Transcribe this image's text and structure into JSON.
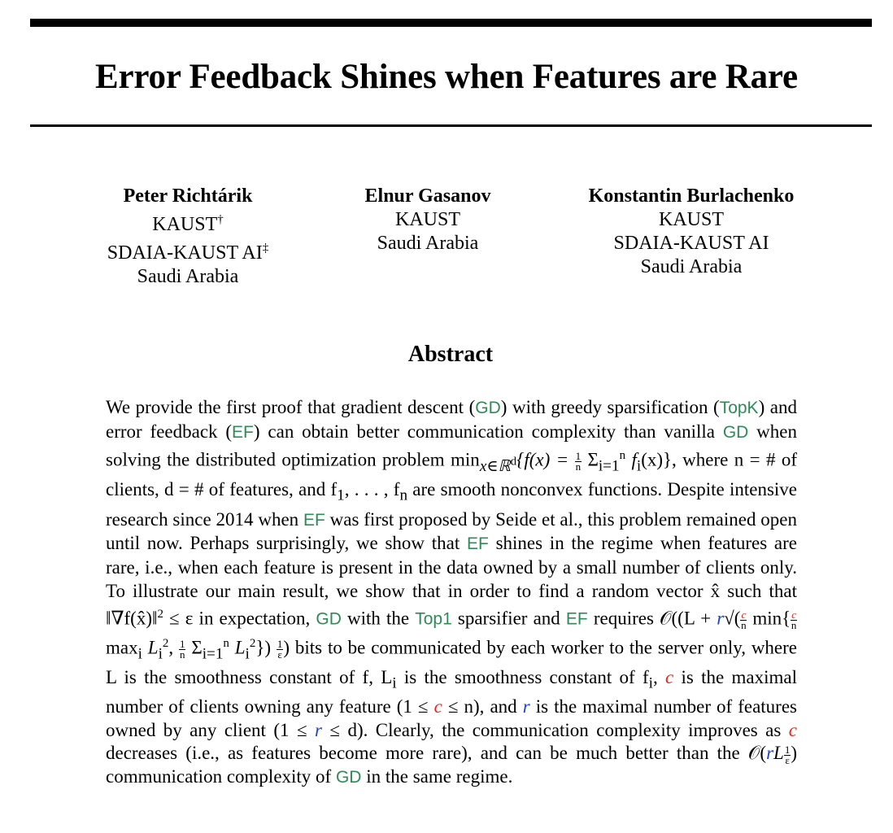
{
  "paper": {
    "title": "Error Feedback Shines when Features are Rare",
    "authors": [
      {
        "name": "Peter Richtárik",
        "aff1": "KAUST",
        "aff1_mark": "†",
        "aff2": "SDAIA-KAUST AI",
        "aff2_mark": "‡",
        "country": "Saudi Arabia"
      },
      {
        "name": "Elnur Gasanov",
        "aff1": "KAUST",
        "country": "Saudi Arabia"
      },
      {
        "name": "Konstantin Burlachenko",
        "aff1": "KAUST",
        "aff2": "SDAIA-KAUST AI",
        "country": "Saudi Arabia"
      }
    ],
    "abstract_heading": "Abstract",
    "acronyms": {
      "gd": "GD",
      "topk": "TopK",
      "ef": "EF",
      "top1": "Top1"
    },
    "colors": {
      "acronym": "#2e8b57",
      "c_param": "#e8231f",
      "r_param": "#1f3fd6"
    },
    "abstract_parts": {
      "p1": "We provide the first proof that gradient descent (",
      "p2": ") with greedy sparsification (",
      "p3": ") and error feedback (",
      "p4": ") can obtain better communication complexity than vanilla ",
      "p5": " when solving the distributed optimization problem min",
      "p5_sub": "x∈ℝ",
      "p5_sup": "d",
      "p6": "{f(x) = ",
      "p7": " Σ",
      "p7_sub": "i=1",
      "p7_sup": "n",
      "p8": " f",
      "p8_sub": "i",
      "p9": "(x)}, where n = # of clients, d = # of features, and f",
      "p9_sub1": "1",
      "p9b": ", . . . , f",
      "p9_sub2": "n",
      "p10": " are smooth nonconvex functions. Despite intensive research since 2014 when ",
      "p11": " was first proposed by Seide et al., this problem remained open until now. Perhaps surprisingly, we show that ",
      "p12": " shines in the regime when features are rare, i.e., when each feature is present in the data owned by a small number of clients only. To illustrate our main result, we show that in order to find a random vector x̂ such that ‖∇f(x̂)‖",
      "p12_sup": "2",
      "p13": " ≤ ε in expectation, ",
      "p14": " with the ",
      "p15": " sparsifier and ",
      "p16": " requires 𝒪((L + ",
      "p17": "√(",
      "p18": " min{",
      "p19": " max",
      "p19_sub": "i",
      "p19b": " L",
      "p19_sub2": "i",
      "p19_sup2": "2",
      "p20": ", ",
      "p21": " Σ",
      "p21_sub": "i=1",
      "p21_sup": "n",
      "p21b": " L",
      "p21_sub2": "i",
      "p21_sup2": "2",
      "p22": "}) ",
      "p23": ") bits to be communicated by each worker to the server only, where L is the smoothness constant of f, L",
      "p23_sub": "i",
      "p24": " is the smoothness constant of f",
      "p24_sub": "i",
      "p25": ", ",
      "p26": " is the maximal number of clients owning any feature (1 ≤ ",
      "p27": " ≤ n), and ",
      "p28": " is the maximal number of features owned by any client (1 ≤ ",
      "p29": " ≤ d). Clearly, the communication complexity improves as ",
      "p30": " decreases (i.e., as features become more rare), and can be much better than the 𝒪(",
      "p31": "L",
      "p32": ") communication complexity of ",
      "p33": " in the same regime."
    },
    "symbols": {
      "c": "c",
      "r": "r",
      "one": "1",
      "n": "n",
      "eps": "ε"
    }
  }
}
